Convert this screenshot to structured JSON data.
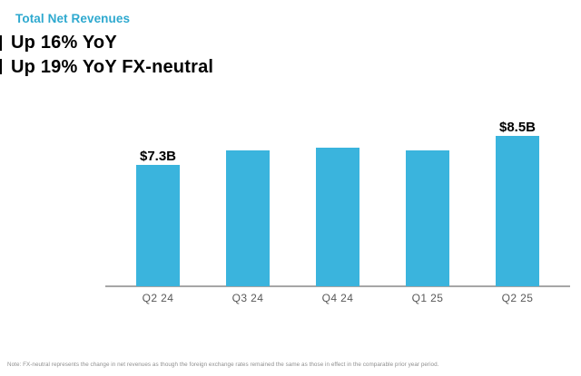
{
  "header": {
    "title": "Total Net Revenues",
    "subtitle_line1": "Up 16% YoY",
    "subtitle_line2": "Up 19% YoY FX-neutral"
  },
  "chart_data": {
    "type": "bar",
    "title": "Total Net Revenues",
    "categories": [
      "Q2 24",
      "Q3 24",
      "Q4 24",
      "Q1 25",
      "Q2 25"
    ],
    "values": [
      7.3,
      7.9,
      8.0,
      7.9,
      8.5
    ],
    "values_unit": "$B",
    "bar_labels": [
      "$7.3B",
      null,
      null,
      null,
      "$8.5B"
    ],
    "xlabel": "",
    "ylabel": "",
    "ylim": [
      2.275,
      9.25
    ],
    "grid": false,
    "legend": false
  },
  "footnote": "Note: FX-neutral represents the change in net revenues as though the foreign exchange rates remained the same as those in effect in the comparable prior year period.",
  "colors": {
    "title": "#2EA9CF",
    "subtitle": "#000000",
    "bar": "#3AB4DD",
    "bar_label": "#000000",
    "axis_line": "#A6A6A6",
    "tick_label": "#595959",
    "footnote": "#8F8F8F",
    "background": "#FFFFFF"
  }
}
